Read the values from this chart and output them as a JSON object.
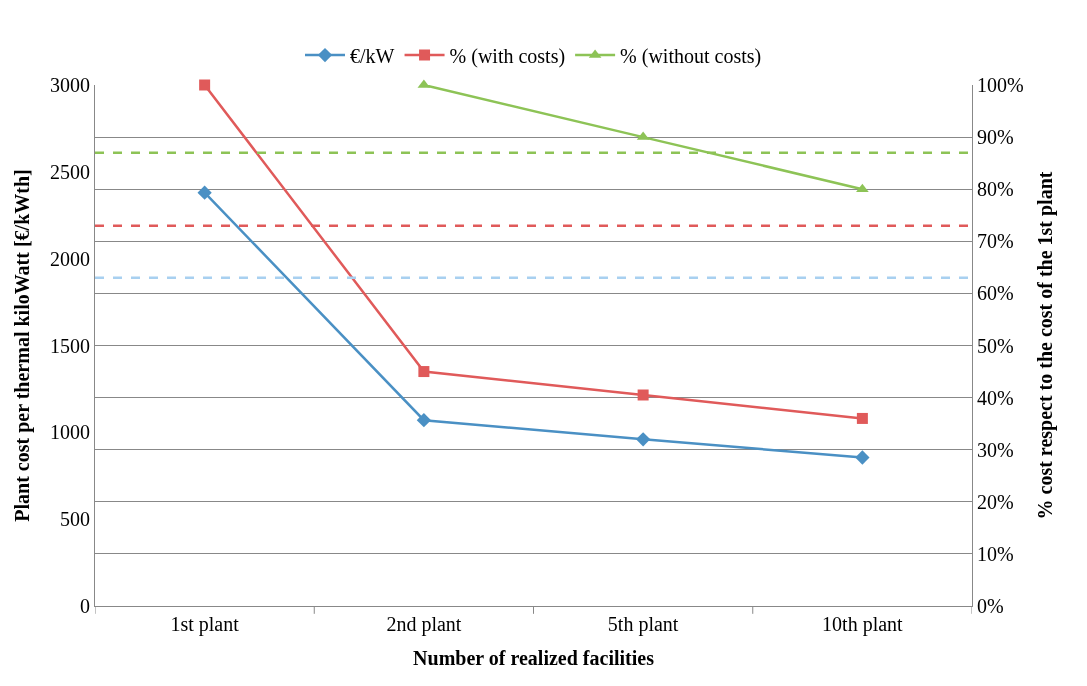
{
  "chart_data": {
    "type": "line",
    "xlabel": "Number of realized facilities",
    "ylabel": "Plant cost per thermal kiloWatt [€/kWth]",
    "y2label": "% cost respect to the cost of the 1st plant",
    "categories": [
      "1st plant",
      "2nd plant",
      "5th plant",
      "10th plant"
    ],
    "series": [
      {
        "name": "€/kW",
        "color": "#4a90c4",
        "values": [
          2380,
          1070,
          960,
          855
        ],
        "marker": "diamond"
      },
      {
        "name": "% (with costs)",
        "color": "#e05a5a",
        "values": [
          100,
          45,
          40.5,
          36
        ],
        "axis": "y2",
        "marker": "square"
      },
      {
        "name": "% (without costs)",
        "color": "#8dc356",
        "values": [
          null,
          100,
          90,
          80
        ],
        "axis": "y2",
        "marker": "triangle"
      }
    ],
    "ref_lines": [
      {
        "axis": "y2",
        "value": 73,
        "color": "#e05a5a",
        "line_style": "dashed"
      },
      {
        "axis": "y2",
        "value": 87,
        "color": "#8dc356",
        "line_style": "dashed"
      },
      {
        "axis": "y",
        "value": 1890,
        "color": "#a8d0f0",
        "line_style": "dashed"
      }
    ],
    "ylim": [
      0,
      3000
    ],
    "yticks": [
      0,
      500,
      1000,
      1500,
      2000,
      2500,
      3000
    ],
    "y2lim": [
      0,
      100
    ],
    "y2ticks": [
      {
        "value": 0,
        "label": "0%"
      },
      {
        "value": 10,
        "label": "10%"
      },
      {
        "value": 20,
        "label": "20%"
      },
      {
        "value": 30,
        "label": "30%"
      },
      {
        "value": 40,
        "label": "40%"
      },
      {
        "value": 50,
        "label": "50%"
      },
      {
        "value": 60,
        "label": "60%"
      },
      {
        "value": 70,
        "label": "70%"
      },
      {
        "value": 80,
        "label": "80%"
      },
      {
        "value": 90,
        "label": "90%"
      },
      {
        "value": 100,
        "label": "100%"
      }
    ],
    "grid": "y",
    "legend": "top",
    "line_style": "solid"
  }
}
